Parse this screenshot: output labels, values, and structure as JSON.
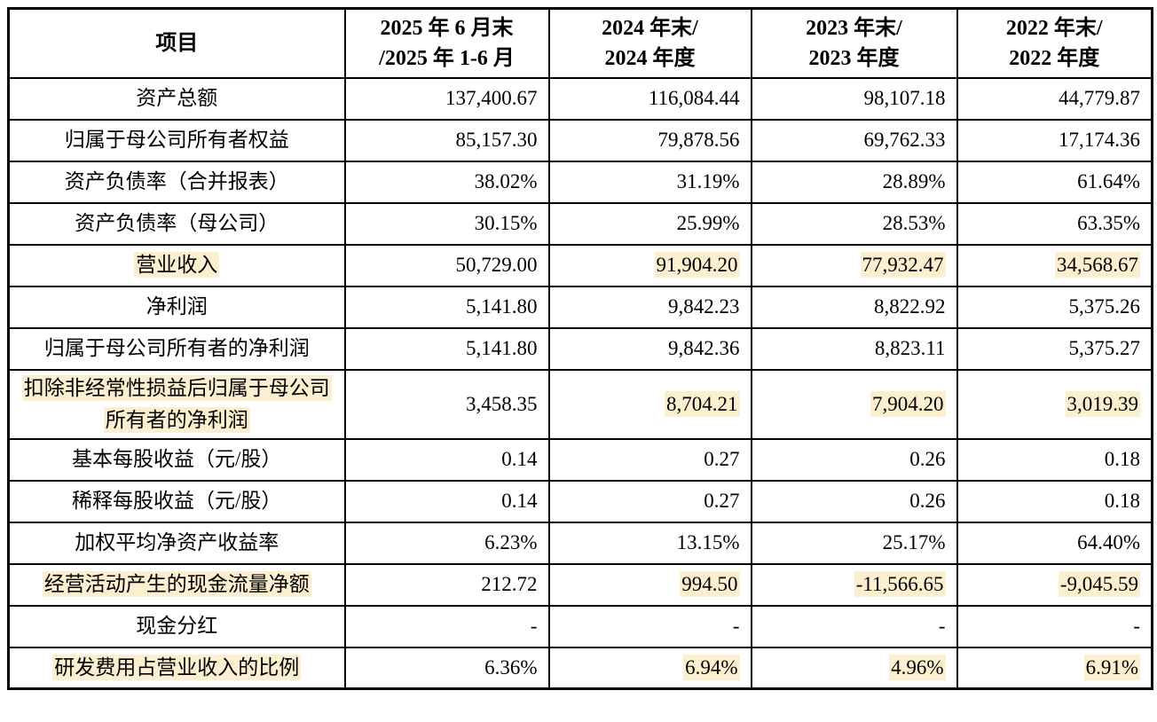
{
  "colors": {
    "highlight": "#FBEFD0",
    "border": "#000000",
    "background": "#FFFFFF"
  },
  "table": {
    "columns": [
      {
        "line1": "项目",
        "line2": ""
      },
      {
        "line1": "2025 年 6 月末",
        "line2": "/2025 年 1-6 月"
      },
      {
        "line1": "2024 年末/",
        "line2": "2024 年度"
      },
      {
        "line1": "2023 年末/",
        "line2": "2023 年度"
      },
      {
        "line1": "2022 年末/",
        "line2": "2022 年度"
      }
    ],
    "rows": [
      {
        "label": "资产总额",
        "label_highlight": false,
        "values": [
          "137,400.67",
          "116,084.44",
          "98,107.18",
          "44,779.87"
        ],
        "value_highlights": [
          false,
          false,
          false,
          false
        ]
      },
      {
        "label": "归属于母公司所有者权益",
        "label_highlight": false,
        "values": [
          "85,157.30",
          "79,878.56",
          "69,762.33",
          "17,174.36"
        ],
        "value_highlights": [
          false,
          false,
          false,
          false
        ]
      },
      {
        "label": "资产负债率（合并报表）",
        "label_highlight": false,
        "values": [
          "38.02%",
          "31.19%",
          "28.89%",
          "61.64%"
        ],
        "value_highlights": [
          false,
          false,
          false,
          false
        ]
      },
      {
        "label": "资产负债率（母公司）",
        "label_highlight": false,
        "values": [
          "30.15%",
          "25.99%",
          "28.53%",
          "63.35%"
        ],
        "value_highlights": [
          false,
          false,
          false,
          false
        ]
      },
      {
        "label": "营业收入",
        "label_highlight": true,
        "values": [
          "50,729.00",
          "91,904.20",
          "77,932.47",
          "34,568.67"
        ],
        "value_highlights": [
          false,
          true,
          true,
          true
        ]
      },
      {
        "label": "净利润",
        "label_highlight": false,
        "values": [
          "5,141.80",
          "9,842.23",
          "8,822.92",
          "5,375.26"
        ],
        "value_highlights": [
          false,
          false,
          false,
          false
        ]
      },
      {
        "label": "归属于母公司所有者的净利润",
        "label_highlight": false,
        "values": [
          "5,141.80",
          "9,842.36",
          "8,823.11",
          "5,375.27"
        ],
        "value_highlights": [
          false,
          false,
          false,
          false
        ]
      },
      {
        "label": "扣除非经常性损益后归属于母公司所有者的净利润",
        "label_highlight": true,
        "values": [
          "3,458.35",
          "8,704.21",
          "7,904.20",
          "3,019.39"
        ],
        "value_highlights": [
          false,
          true,
          true,
          true
        ]
      },
      {
        "label": "基本每股收益（元/股）",
        "label_highlight": false,
        "values": [
          "0.14",
          "0.27",
          "0.26",
          "0.18"
        ],
        "value_highlights": [
          false,
          false,
          false,
          false
        ]
      },
      {
        "label": "稀释每股收益（元/股）",
        "label_highlight": false,
        "values": [
          "0.14",
          "0.27",
          "0.26",
          "0.18"
        ],
        "value_highlights": [
          false,
          false,
          false,
          false
        ]
      },
      {
        "label": "加权平均净资产收益率",
        "label_highlight": false,
        "values": [
          "6.23%",
          "13.15%",
          "25.17%",
          "64.40%"
        ],
        "value_highlights": [
          false,
          false,
          false,
          false
        ]
      },
      {
        "label": "经营活动产生的现金流量净额",
        "label_highlight": true,
        "values": [
          "212.72",
          "994.50",
          "-11,566.65",
          "-9,045.59"
        ],
        "value_highlights": [
          false,
          true,
          true,
          true
        ]
      },
      {
        "label": "现金分红",
        "label_highlight": false,
        "values": [
          "-",
          "-",
          "-",
          "-"
        ],
        "value_highlights": [
          false,
          false,
          false,
          false
        ]
      },
      {
        "label": "研发费用占营业收入的比例",
        "label_highlight": true,
        "values": [
          "6.36%",
          "6.94%",
          "4.96%",
          "6.91%"
        ],
        "value_highlights": [
          false,
          true,
          true,
          true
        ]
      }
    ]
  }
}
